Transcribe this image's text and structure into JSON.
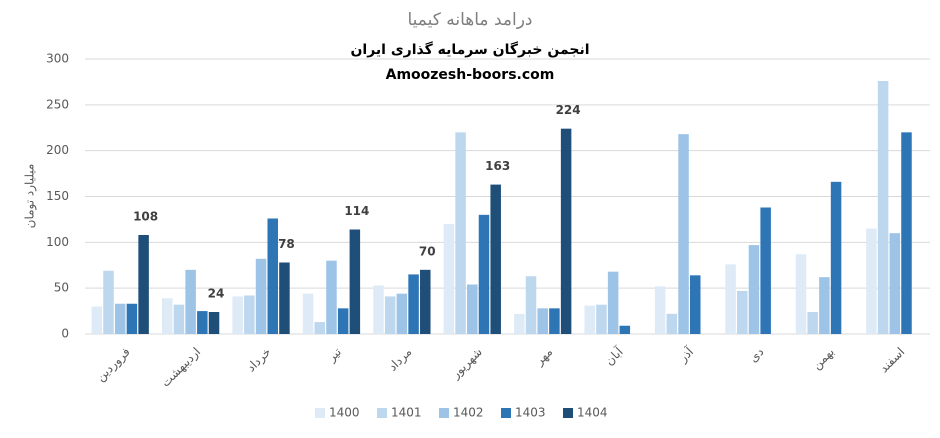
{
  "chart_data": {
    "type": "bar",
    "title": "درامد ماهانه کیمیا",
    "subtitle": [
      "انجمن خبرگان سرمایه گذاری ایران",
      "Amoozesh-boors.com"
    ],
    "y_label": "میلیارد تومان",
    "categories": [
      "فروردین",
      "اردیبهشت",
      "خرداد",
      "تیر",
      "مرداد",
      "شهریور",
      "مهر",
      "آبان",
      "آذر",
      "دی",
      "بهمن",
      "اسفند"
    ],
    "series": [
      {
        "name": "1400",
        "color": "#deebf7",
        "values": [
          30,
          39,
          41,
          44,
          53,
          120,
          22,
          31,
          52,
          76,
          87,
          115
        ]
      },
      {
        "name": "1401",
        "color": "#bdd7ee",
        "values": [
          69,
          32,
          42,
          13,
          41,
          220,
          63,
          32,
          22,
          47,
          24,
          276
        ]
      },
      {
        "name": "1402",
        "color": "#9dc3e6",
        "values": [
          33,
          70,
          82,
          80,
          44,
          54,
          28,
          68,
          218,
          97,
          62,
          110
        ]
      },
      {
        "name": "1403",
        "color": "#2e75b6",
        "values": [
          33,
          25,
          126,
          28,
          65,
          130,
          28,
          9,
          64,
          138,
          166,
          220
        ]
      },
      {
        "name": "1404",
        "color": "#1f4e79",
        "show_labels": true,
        "values": [
          108,
          24,
          78,
          114,
          70,
          163,
          224,
          null,
          null,
          null,
          null,
          null
        ]
      }
    ],
    "ylim": [
      0,
      300
    ],
    "yticks": [
      0,
      50,
      100,
      150,
      200,
      250,
      300
    ],
    "grid": true,
    "legend": "bottom"
  }
}
